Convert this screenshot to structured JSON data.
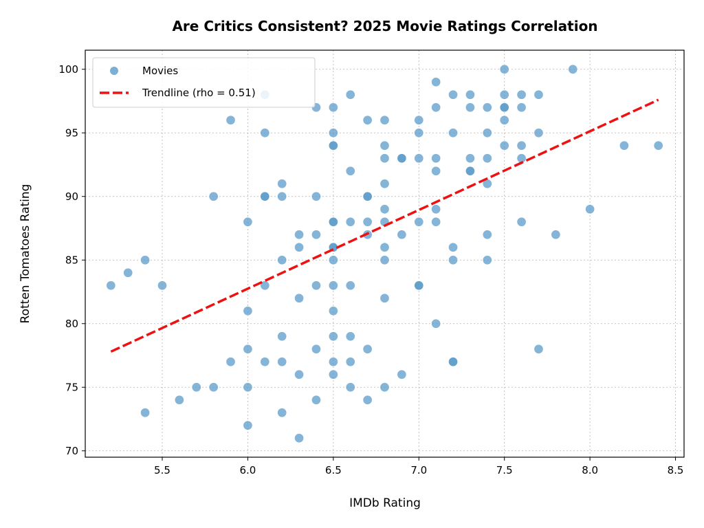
{
  "chart_data": {
    "type": "scatter",
    "title": "Are Critics Consistent? 2025 Movie Ratings Correlation",
    "xlabel": "IMDb Rating",
    "ylabel": "Rotten Tomatoes Rating",
    "xlim": [
      5.05,
      8.55
    ],
    "ylim": [
      69.5,
      101.5
    ],
    "xticks": [
      "5.5",
      "6.0",
      "6.5",
      "7.0",
      "7.5",
      "8.0",
      "8.5"
    ],
    "yticks": [
      "70",
      "75",
      "80",
      "85",
      "90",
      "95",
      "100"
    ],
    "grid": true,
    "legend_position": "top-left",
    "series": [
      {
        "name": "Movies",
        "color": "#5b9bc9",
        "points": [
          [
            5.2,
            83
          ],
          [
            5.3,
            84
          ],
          [
            5.4,
            85
          ],
          [
            5.4,
            73
          ],
          [
            5.5,
            83
          ],
          [
            5.6,
            74
          ],
          [
            5.7,
            75
          ],
          [
            5.8,
            90
          ],
          [
            5.8,
            75
          ],
          [
            5.9,
            96
          ],
          [
            5.9,
            77
          ],
          [
            6.0,
            88
          ],
          [
            6.0,
            81
          ],
          [
            6.0,
            78
          ],
          [
            6.0,
            75
          ],
          [
            6.0,
            72
          ],
          [
            6.1,
            98
          ],
          [
            6.1,
            95
          ],
          [
            6.1,
            90
          ],
          [
            6.1,
            90
          ],
          [
            6.1,
            83
          ],
          [
            6.1,
            77
          ],
          [
            6.2,
            91
          ],
          [
            6.2,
            90
          ],
          [
            6.2,
            85
          ],
          [
            6.2,
            79
          ],
          [
            6.2,
            77
          ],
          [
            6.2,
            73
          ],
          [
            6.3,
            87
          ],
          [
            6.3,
            86
          ],
          [
            6.3,
            82
          ],
          [
            6.3,
            76
          ],
          [
            6.3,
            71
          ],
          [
            6.4,
            97
          ],
          [
            6.4,
            90
          ],
          [
            6.4,
            87
          ],
          [
            6.4,
            83
          ],
          [
            6.4,
            78
          ],
          [
            6.4,
            74
          ],
          [
            6.5,
            97
          ],
          [
            6.5,
            95
          ],
          [
            6.5,
            94
          ],
          [
            6.5,
            94
          ],
          [
            6.5,
            88
          ],
          [
            6.5,
            88
          ],
          [
            6.5,
            86
          ],
          [
            6.5,
            86
          ],
          [
            6.5,
            85
          ],
          [
            6.5,
            83
          ],
          [
            6.5,
            81
          ],
          [
            6.5,
            79
          ],
          [
            6.5,
            77
          ],
          [
            6.5,
            76
          ],
          [
            6.6,
            98
          ],
          [
            6.6,
            92
          ],
          [
            6.6,
            88
          ],
          [
            6.6,
            83
          ],
          [
            6.6,
            79
          ],
          [
            6.6,
            77
          ],
          [
            6.6,
            75
          ],
          [
            6.7,
            96
          ],
          [
            6.7,
            90
          ],
          [
            6.7,
            90
          ],
          [
            6.7,
            88
          ],
          [
            6.7,
            87
          ],
          [
            6.7,
            78
          ],
          [
            6.7,
            74
          ],
          [
            6.8,
            96
          ],
          [
            6.8,
            94
          ],
          [
            6.8,
            93
          ],
          [
            6.8,
            91
          ],
          [
            6.8,
            89
          ],
          [
            6.8,
            88
          ],
          [
            6.8,
            86
          ],
          [
            6.8,
            85
          ],
          [
            6.8,
            82
          ],
          [
            6.8,
            75
          ],
          [
            6.9,
            93
          ],
          [
            6.9,
            93
          ],
          [
            6.9,
            87
          ],
          [
            6.9,
            76
          ],
          [
            7.0,
            96
          ],
          [
            7.0,
            95
          ],
          [
            7.0,
            93
          ],
          [
            7.0,
            88
          ],
          [
            7.0,
            83
          ],
          [
            7.0,
            83
          ],
          [
            7.1,
            99
          ],
          [
            7.1,
            97
          ],
          [
            7.1,
            93
          ],
          [
            7.1,
            92
          ],
          [
            7.1,
            89
          ],
          [
            7.1,
            88
          ],
          [
            7.1,
            80
          ],
          [
            7.2,
            98
          ],
          [
            7.2,
            95
          ],
          [
            7.2,
            86
          ],
          [
            7.2,
            85
          ],
          [
            7.2,
            77
          ],
          [
            7.2,
            77
          ],
          [
            7.3,
            98
          ],
          [
            7.3,
            97
          ],
          [
            7.3,
            93
          ],
          [
            7.3,
            92
          ],
          [
            7.3,
            92
          ],
          [
            7.4,
            97
          ],
          [
            7.4,
            95
          ],
          [
            7.4,
            93
          ],
          [
            7.4,
            91
          ],
          [
            7.4,
            87
          ],
          [
            7.4,
            85
          ],
          [
            7.5,
            100
          ],
          [
            7.5,
            98
          ],
          [
            7.5,
            97
          ],
          [
            7.5,
            97
          ],
          [
            7.5,
            96
          ],
          [
            7.5,
            94
          ],
          [
            7.6,
            98
          ],
          [
            7.6,
            97
          ],
          [
            7.6,
            94
          ],
          [
            7.6,
            93
          ],
          [
            7.6,
            88
          ],
          [
            7.7,
            98
          ],
          [
            7.7,
            95
          ],
          [
            7.7,
            78
          ],
          [
            7.8,
            87
          ],
          [
            7.9,
            100
          ],
          [
            8.0,
            89
          ],
          [
            8.2,
            94
          ],
          [
            8.4,
            94
          ]
        ]
      },
      {
        "name": "Trendline (rho = 0.51)",
        "type": "line",
        "style": "dashed",
        "color": "#ee1111",
        "x": [
          5.2,
          8.4
        ],
        "y": [
          77.8,
          97.6
        ]
      }
    ]
  }
}
